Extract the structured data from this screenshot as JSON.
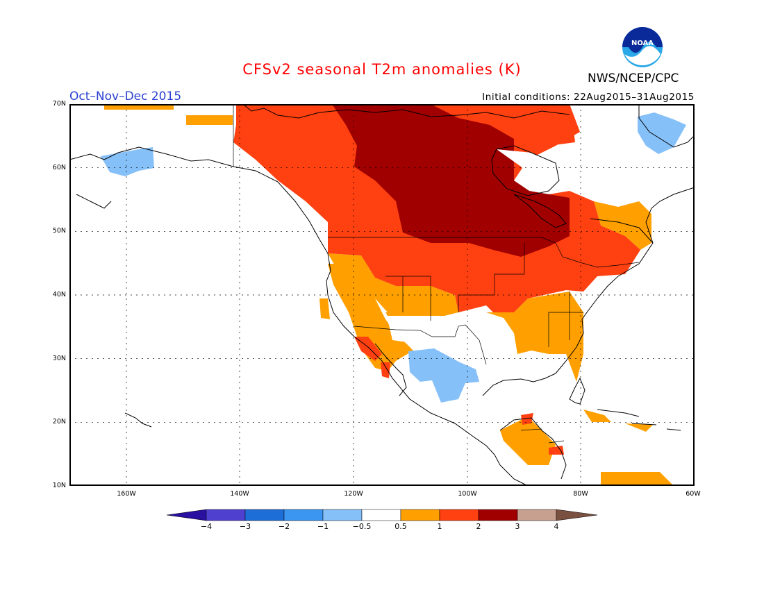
{
  "title": "CFSv2 seasonal T2m anomalies (K)",
  "season": "Oct–Nov–Dec 2015",
  "initial_conditions": "Initial conditions: 22Aug2015–31Aug2015",
  "agency": "NWS/NCEP/CPC",
  "logo_text": "NOAA",
  "lat_labels": [
    "70N",
    "60N",
    "50N",
    "40N",
    "30N",
    "20N",
    "10N"
  ],
  "lon_labels": [
    "160W",
    "140W",
    "120W",
    "100W",
    "80W",
    "60W"
  ],
  "legend": {
    "labels": [
      "−4",
      "−3",
      "−2",
      "−1",
      "−0.5",
      "0.5",
      "1",
      "2",
      "3",
      "4"
    ],
    "colors": [
      "#2a10a0",
      "#5040d0",
      "#1e6ed8",
      "#3a96f0",
      "#86c0f8",
      "#ffffff",
      "#ffa000",
      "#ff4010",
      "#a00000",
      "#c8a090",
      "#7a5040"
    ]
  },
  "palette": {
    "land": "#ffffff",
    "anom_0_5_to_1": "#ffa000",
    "anom_1_to_2": "#ff4010",
    "anom_2_to_3": "#a00000",
    "anom_neg_0_5_to_neg_1": "#86c0f8",
    "title": "#ff0000",
    "season": "#2a40d0"
  },
  "regions": [
    {
      "name": "Central Canada",
      "category": "2 to 3 K"
    },
    {
      "name": "Western Canada and Northern US",
      "category": "1 to 2 K"
    },
    {
      "name": "Southern US and Mexico coasts",
      "category": "0.5 to 1 K"
    },
    {
      "name": "Northern Mexico",
      "category": "-1 to -0.5 K"
    },
    {
      "name": "Western Alaska",
      "category": "-1 to -0.5 K"
    },
    {
      "name": "Greenland coast",
      "category": "-1 to -0.5 K"
    }
  ]
}
